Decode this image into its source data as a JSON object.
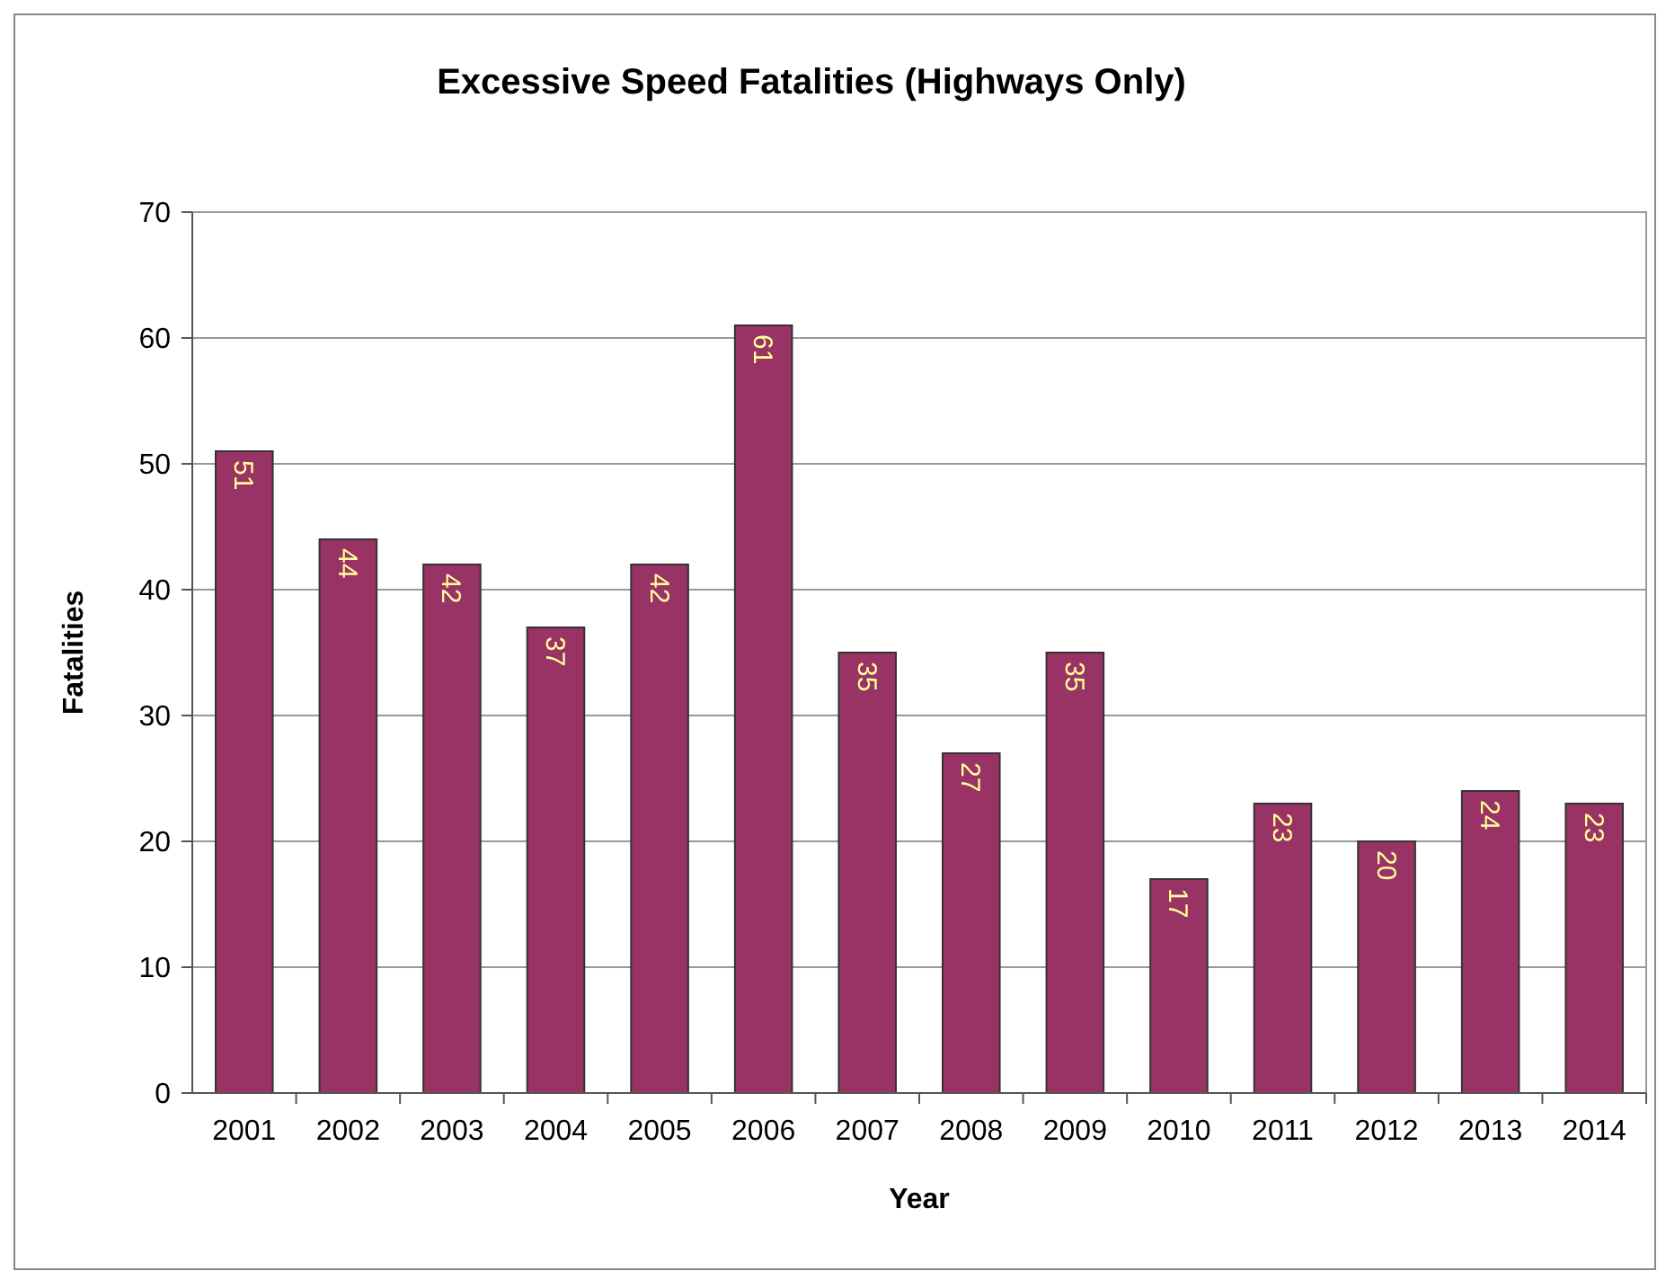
{
  "chart_data": {
    "type": "bar",
    "title": "Excessive Speed Fatalities (Highways Only)",
    "xlabel": "Year",
    "ylabel": "Fatalities",
    "categories": [
      "2001",
      "2002",
      "2003",
      "2004",
      "2005",
      "2006",
      "2007",
      "2008",
      "2009",
      "2010",
      "2011",
      "2012",
      "2013",
      "2014"
    ],
    "values": [
      51,
      44,
      42,
      37,
      42,
      61,
      35,
      27,
      35,
      17,
      23,
      20,
      24,
      23
    ],
    "color": "#993366",
    "ylim": [
      0,
      70
    ],
    "yticks": [
      0,
      10,
      20,
      30,
      40,
      50,
      60,
      70
    ],
    "grid": "y",
    "data_labels": true
  }
}
